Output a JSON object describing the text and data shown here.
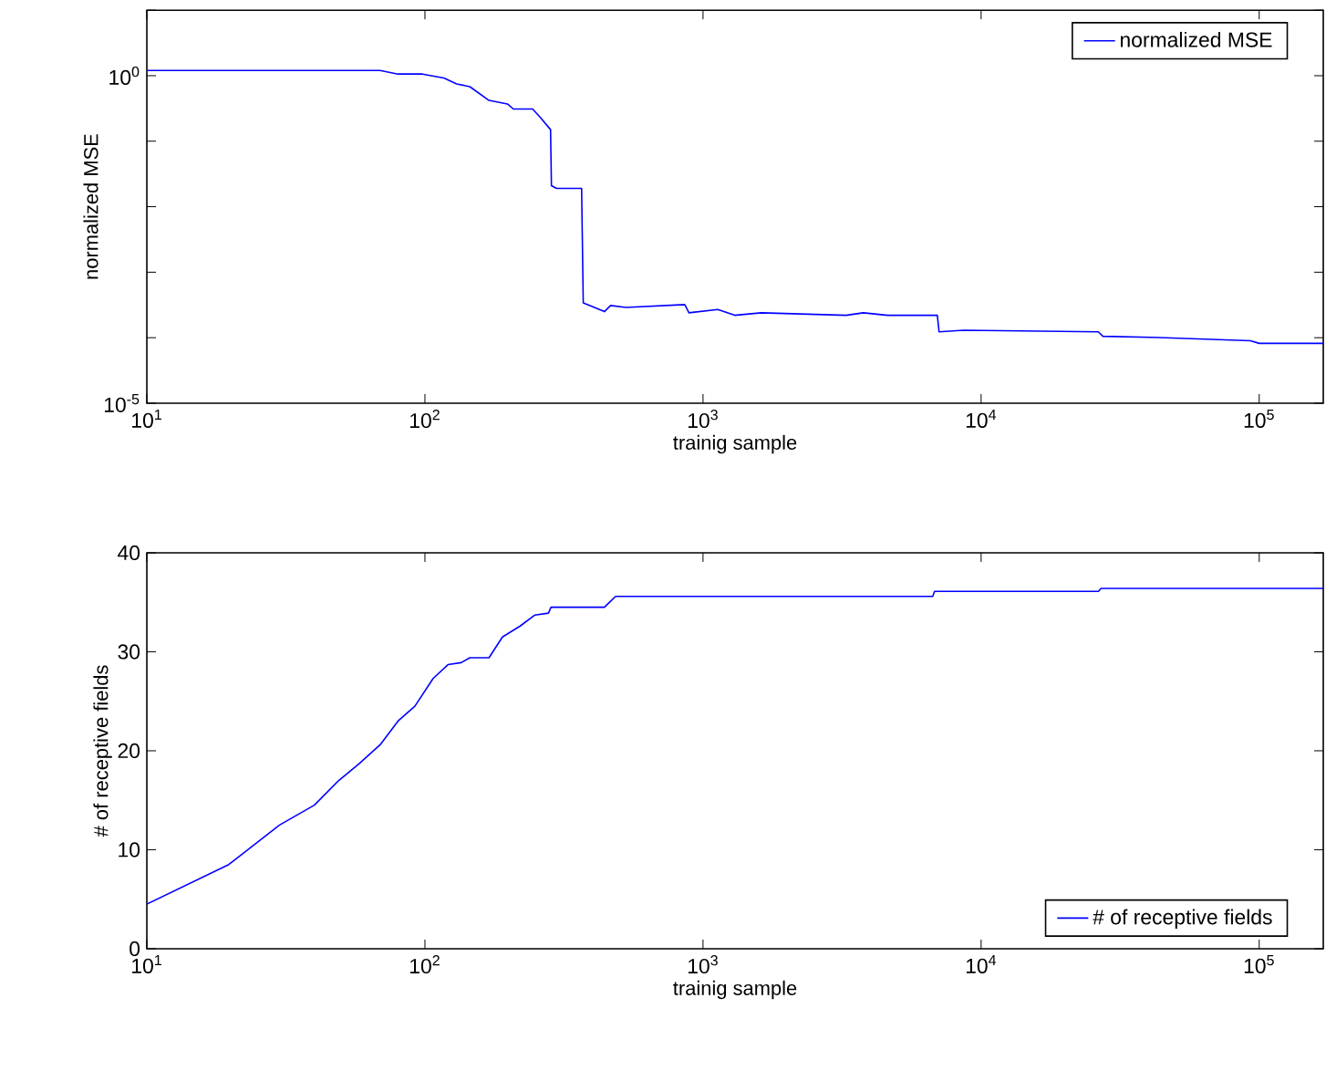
{
  "chart_data": [
    {
      "type": "line",
      "xlabel": "trainig sample",
      "ylabel": "normalized MSE",
      "log": "xy",
      "legend": "top right",
      "x": [
        10,
        69,
        80,
        98,
        117,
        130,
        145,
        170,
        198,
        208,
        244,
        260,
        283,
        285,
        297,
        366,
        371,
        442,
        465,
        528,
        860,
        890,
        1130,
        1300,
        1620,
        3270,
        3770,
        4610,
        6960,
        7060,
        8650,
        26400,
        27400,
        46000,
        93000,
        100000,
        170000
      ],
      "series": [
        {
          "name": "normalized MSE",
          "color": "#0000ff",
          "values": [
            1.2,
            1.2,
            1.06,
            1.06,
            0.92,
            0.75,
            0.68,
            0.42,
            0.37,
            0.31,
            0.31,
            0.23,
            0.15,
            0.021,
            0.019,
            0.019,
            0.00034,
            0.00025,
            0.00031,
            0.00029,
            0.00032,
            0.00024,
            0.00027,
            0.00022,
            0.00024,
            0.00022,
            0.00024,
            0.00022,
            0.00022,
            0.000123,
            0.00013,
            0.000123,
            0.000105,
            0.0001,
            9e-05,
            8.2e-05,
            8.2e-05
          ]
        }
      ],
      "xlim": [
        10,
        170000
      ],
      "ylim": [
        1e-05,
        10
      ],
      "xticks": [
        {
          "value": 10,
          "label": "10$^{1}$"
        },
        {
          "value": 100,
          "label": "10$^{2}$"
        },
        {
          "value": 1000,
          "label": "10$^{3}$"
        },
        {
          "value": 10000,
          "label": "10$^{4}$"
        },
        {
          "value": 100000,
          "label": "10$^{5}$"
        }
      ],
      "yticks": [
        {
          "value": 1e-05,
          "label": "10$^{-5}$"
        },
        {
          "value": 0.0001,
          "label": null
        },
        {
          "value": 0.001,
          "label": null
        },
        {
          "value": 0.01,
          "label": null
        },
        {
          "value": 0.1,
          "label": null
        },
        {
          "value": 1,
          "label": "10$^{0}$"
        },
        {
          "value": 10,
          "label": null
        }
      ]
    },
    {
      "type": "line",
      "xlabel": "trainig sample",
      "ylabel": "# of receptive fields",
      "log": "x",
      "legend": "bottom right",
      "x": [
        10,
        19.7,
        30,
        40,
        49,
        58,
        69,
        80,
        92,
        107,
        121,
        135,
        145,
        170,
        190,
        220,
        248,
        278,
        284,
        442,
        465,
        485,
        6700,
        6800,
        26400,
        27000,
        170000
      ],
      "series": [
        {
          "name": "# of receptive fields",
          "color": "#0000ff",
          "values": [
            4.5,
            8.5,
            12.5,
            14.5,
            17.0,
            18.7,
            20.6,
            23.0,
            24.5,
            27.3,
            28.7,
            28.9,
            29.4,
            29.4,
            31.5,
            32.6,
            33.7,
            33.9,
            34.5,
            34.5,
            35.1,
            35.6,
            35.6,
            36.1,
            36.1,
            36.4,
            36.4
          ]
        }
      ],
      "xlim": [
        10,
        170000
      ],
      "ylim": [
        0,
        40
      ],
      "xticks": [
        {
          "value": 10,
          "label": "10$^{1}$"
        },
        {
          "value": 100,
          "label": "10$^{2}$"
        },
        {
          "value": 1000,
          "label": "10$^{3}$"
        },
        {
          "value": 10000,
          "label": "10$^{4}$"
        },
        {
          "value": 100000,
          "label": "10$^{5}$"
        }
      ],
      "yticks": [
        0,
        10,
        20,
        30,
        40
      ]
    }
  ]
}
